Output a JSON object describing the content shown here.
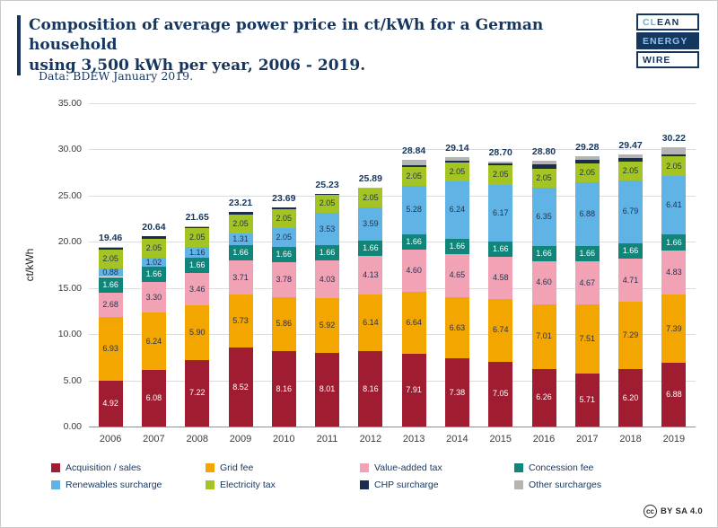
{
  "header": {
    "title": "Composition of average power price in ct/kWh for a German household\nusing 3,500 kWh per year, 2006 - 2019.",
    "subtitle": "Data: BDEW January 2019."
  },
  "logo": {
    "clean_a": "CL",
    "clean_b": "EAN",
    "energy": "ENERGY",
    "wire": "WIRE"
  },
  "footer": {
    "cc_symbol": "cc",
    "license": "BY SA 4.0"
  },
  "colors": {
    "brand_navy": "#17365d",
    "brand_light_blue": "#6aaedd"
  },
  "chart_data": {
    "type": "bar",
    "stacked": true,
    "title": "Composition of average power price in ct/kWh for a German household using 3,500 kWh per year, 2006 - 2019.",
    "source": "Data: BDEW January 2019.",
    "ylabel": "ct/kWh",
    "xlabel": "",
    "ylim": [
      0,
      35
    ],
    "ytick_labels": [
      "35.00",
      "30.00",
      "25.00",
      "20.00",
      "15.00",
      "10.00",
      "5.00",
      "0.00"
    ],
    "grid": true,
    "legend_position": "bottom",
    "categories": [
      "2006",
      "2007",
      "2008",
      "2009",
      "2010",
      "2011",
      "2012",
      "2013",
      "2014",
      "2015",
      "2016",
      "2017",
      "2018",
      "2019"
    ],
    "totals": [
      19.46,
      20.64,
      21.65,
      23.21,
      23.69,
      25.23,
      25.89,
      28.84,
      29.14,
      28.7,
      28.8,
      29.28,
      29.47,
      30.22
    ],
    "series": [
      {
        "name": "Acquisition / sales",
        "color": "#a01c30",
        "label_color": "#ffffff",
        "show_labels": true,
        "values": [
          4.92,
          6.08,
          7.22,
          8.52,
          8.16,
          8.01,
          8.16,
          7.91,
          7.38,
          7.05,
          6.26,
          5.71,
          6.2,
          6.88
        ]
      },
      {
        "name": "Grid fee",
        "color": "#f4a600",
        "label_color": "#1f3050",
        "show_labels": true,
        "values": [
          6.93,
          6.24,
          5.9,
          5.73,
          5.86,
          5.92,
          6.14,
          6.64,
          6.63,
          6.74,
          7.01,
          7.51,
          7.29,
          7.39
        ]
      },
      {
        "name": "Value-added tax",
        "color": "#f1a3b5",
        "label_color": "#1f3050",
        "show_labels": true,
        "values": [
          2.68,
          3.3,
          3.46,
          3.71,
          3.78,
          4.03,
          4.13,
          4.6,
          4.65,
          4.58,
          4.6,
          4.67,
          4.71,
          4.83
        ]
      },
      {
        "name": "Concession fee",
        "color": "#10857a",
        "label_color": "#ffffff",
        "show_labels": true,
        "values": [
          1.66,
          1.66,
          1.66,
          1.66,
          1.66,
          1.66,
          1.66,
          1.66,
          1.66,
          1.66,
          1.66,
          1.66,
          1.66,
          1.66
        ]
      },
      {
        "name": "Renewables surcharge",
        "color": "#5fb4e5",
        "label_color": "#1f3050",
        "show_labels": true,
        "values": [
          0.88,
          1.02,
          1.16,
          1.31,
          2.05,
          3.53,
          3.59,
          5.28,
          6.24,
          6.17,
          6.35,
          6.88,
          6.79,
          6.41
        ]
      },
      {
        "name": "Electricity tax",
        "color": "#a4c424",
        "label_color": "#1f3050",
        "show_labels": true,
        "values": [
          2.05,
          2.05,
          2.05,
          2.05,
          2.05,
          2.05,
          2.05,
          2.05,
          2.05,
          2.05,
          2.05,
          2.05,
          2.05,
          2.05
        ]
      },
      {
        "name": "CHP surcharge",
        "color": "#1b2d4e",
        "label_color": "#ffffff",
        "show_labels": false,
        "values": [
          0.31,
          0.29,
          0.19,
          0.23,
          0.13,
          0.03,
          0,
          0.13,
          0.18,
          0.25,
          0.44,
          0.44,
          0.35,
          0.28
        ]
      },
      {
        "name": "Other surcharges",
        "color": "#b4b4b4",
        "label_color": "#1f3050",
        "show_labels": false,
        "values": [
          0.03,
          0,
          0.01,
          0,
          0,
          0,
          0.16,
          0.57,
          0.35,
          0.2,
          0.43,
          0.36,
          0.42,
          0.72
        ]
      }
    ]
  }
}
